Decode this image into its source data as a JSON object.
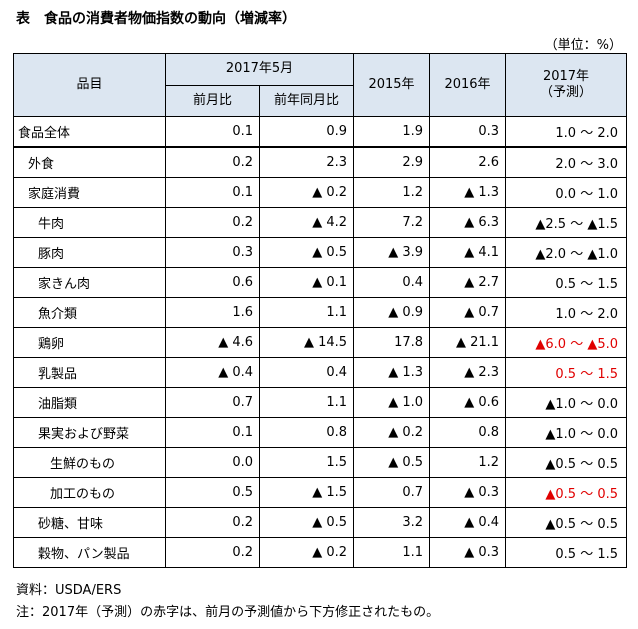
{
  "title": "表　食品の消費者物価指数の動向（増減率）",
  "unit": "（単位：%）",
  "header": {
    "item": "品目",
    "group_2017_may": "2017年5月",
    "mom": "前月比",
    "yoy": "前年同月比",
    "y2015": "2015年",
    "y2016": "2016年",
    "y2017_forecast_line1": "2017年",
    "y2017_forecast_line2": "（予測）"
  },
  "rows": [
    {
      "name": "食品全体",
      "indent": 0,
      "mom": "0.1",
      "yoy": "0.9",
      "y2015": "1.9",
      "y2016": "0.3",
      "forecast": "1.0 ～ 2.0",
      "forecast_red": false
    },
    {
      "name": "外食",
      "indent": 1,
      "mom": "0.2",
      "yoy": "2.3",
      "y2015": "2.9",
      "y2016": "2.6",
      "forecast": "2.0 ～ 3.0",
      "forecast_red": false
    },
    {
      "name": "家庭消費",
      "indent": 1,
      "mom": "0.1",
      "yoy": "▲ 0.2",
      "y2015": "1.2",
      "y2016": "▲ 1.3",
      "forecast": "0.0 ～ 1.0",
      "forecast_red": false
    },
    {
      "name": "牛肉",
      "indent": 2,
      "mom": "0.2",
      "yoy": "▲ 4.2",
      "y2015": "7.2",
      "y2016": "▲ 6.3",
      "forecast": "▲2.5 ～ ▲1.5",
      "forecast_red": false
    },
    {
      "name": "豚肉",
      "indent": 2,
      "mom": "0.3",
      "yoy": "▲ 0.5",
      "y2015": "▲ 3.9",
      "y2016": "▲ 4.1",
      "forecast": "▲2.0 ～ ▲1.0",
      "forecast_red": false
    },
    {
      "name": "家きん肉",
      "indent": 2,
      "mom": "0.6",
      "yoy": "▲ 0.1",
      "y2015": "0.4",
      "y2016": "▲ 2.7",
      "forecast": "0.5 ～ 1.5",
      "forecast_red": false
    },
    {
      "name": "魚介類",
      "indent": 2,
      "mom": "1.6",
      "yoy": "1.1",
      "y2015": "▲ 0.9",
      "y2016": "▲ 0.7",
      "forecast": "1.0 ～ 2.0",
      "forecast_red": false
    },
    {
      "name": "鶏卵",
      "indent": 2,
      "mom": "▲ 4.6",
      "yoy": "▲ 14.5",
      "y2015": "17.8",
      "y2016": "▲ 21.1",
      "forecast": "▲6.0 ～ ▲5.0",
      "forecast_red": true
    },
    {
      "name": "乳製品",
      "indent": 2,
      "mom": "▲ 0.4",
      "yoy": "0.4",
      "y2015": "▲ 1.3",
      "y2016": "▲ 2.3",
      "forecast": "0.5 ～ 1.5",
      "forecast_red": true
    },
    {
      "name": "油脂類",
      "indent": 2,
      "mom": "0.7",
      "yoy": "1.1",
      "y2015": "▲ 1.0",
      "y2016": "▲ 0.6",
      "forecast": "▲1.0 ～ 0.0",
      "forecast_red": false
    },
    {
      "name": "果実および野菜",
      "indent": 2,
      "mom": "0.1",
      "yoy": "0.8",
      "y2015": "▲ 0.2",
      "y2016": "0.8",
      "forecast": "▲1.0 ～ 0.0",
      "forecast_red": false
    },
    {
      "name": "生鮮のもの",
      "indent": 3,
      "mom": "0.0",
      "yoy": "1.5",
      "y2015": "▲ 0.5",
      "y2016": "1.2",
      "forecast": "▲0.5 ～ 0.5",
      "forecast_red": false
    },
    {
      "name": "加工のもの",
      "indent": 3,
      "mom": "0.5",
      "yoy": "▲ 1.5",
      "y2015": "0.7",
      "y2016": "▲ 0.3",
      "forecast": "▲0.5 ～ 0.5",
      "forecast_red": true
    },
    {
      "name": "砂糖、甘味",
      "indent": 2,
      "mom": "0.2",
      "yoy": "▲ 0.5",
      "y2015": "3.2",
      "y2016": "▲ 0.4",
      "forecast": "▲0.5 ～ 0.5",
      "forecast_red": false
    },
    {
      "name": "穀物、パン製品",
      "indent": 2,
      "mom": "0.2",
      "yoy": "▲ 0.2",
      "y2015": "1.1",
      "y2016": "▲ 0.3",
      "forecast": "0.5 ～ 1.5",
      "forecast_red": false
    }
  ],
  "notes": {
    "source": "資料：USDA/ERS",
    "note": "注：2017年（予測）の赤字は、前月の予測値から下方修正されたもの。"
  },
  "colors": {
    "header_bg": "#dce6f1",
    "forecast_revised_down": "#e00000"
  }
}
